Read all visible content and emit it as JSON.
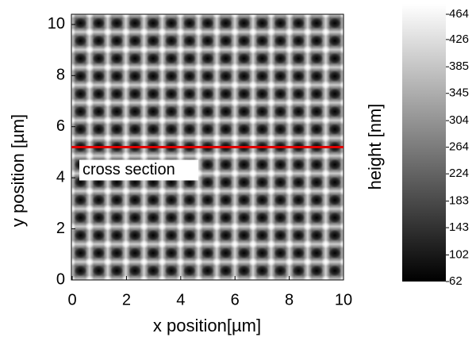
{
  "chart_data": {
    "type": "heatmap",
    "xlabel": "x position[µm]",
    "ylabel": "y position [µm]",
    "xlim": [
      0,
      10
    ],
    "xticks": [
      0,
      2,
      4,
      6,
      8,
      10
    ],
    "ylim": [
      0,
      10.4
    ],
    "yticks": [
      0,
      2,
      4,
      6,
      8,
      10
    ],
    "cross_section": {
      "label": "cross section",
      "y": 5.2,
      "color": "#e00000"
    },
    "colorbar": {
      "label": "height [nm]",
      "lim": [
        62,
        464
      ],
      "ticks": [
        464,
        426,
        385,
        345,
        304,
        264,
        224,
        183,
        143,
        102,
        62
      ]
    }
  }
}
